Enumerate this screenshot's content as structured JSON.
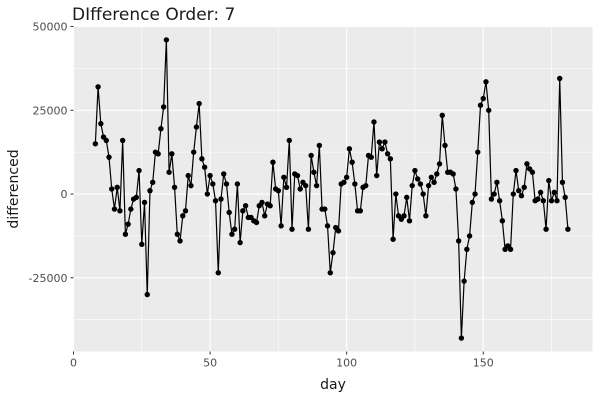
{
  "chart_data": {
    "type": "line",
    "title": "DIfference Order: 7",
    "xlabel": "day",
    "ylabel": "differenced",
    "xlim": [
      0,
      190
    ],
    "ylim": [
      -47000,
      50000
    ],
    "x_ticks": [
      0,
      50,
      100,
      150
    ],
    "y_ticks": [
      -25000,
      0,
      25000,
      50000
    ],
    "y_tick_labels": [
      "-25000",
      "0",
      "25000",
      "50000"
    ],
    "grid": true,
    "legend": "none",
    "colors": {
      "panel": "#ebebeb",
      "grid": "#ffffff",
      "line": "#000000",
      "point": "#000000"
    },
    "series": [
      {
        "x": [
          8,
          9,
          10,
          11,
          12,
          13,
          14,
          15,
          16,
          17,
          18,
          19,
          20,
          21,
          22,
          23,
          24,
          25,
          26,
          27,
          28,
          29,
          30,
          31,
          32,
          33,
          34,
          35,
          36,
          37,
          38,
          39,
          40,
          41,
          42,
          43,
          44,
          45,
          46,
          47,
          48,
          49,
          50,
          51,
          52,
          53,
          54,
          55,
          56,
          57,
          58,
          59,
          60,
          61,
          62,
          63,
          64,
          65,
          66,
          67,
          68,
          69,
          70,
          71,
          72,
          73,
          74,
          75,
          76,
          77,
          78,
          79,
          80,
          81,
          82,
          83,
          84,
          85,
          86,
          87,
          88,
          89,
          90,
          91,
          92,
          93,
          94,
          95,
          96,
          97,
          98,
          99,
          100,
          101,
          102,
          103,
          104,
          105,
          106,
          107,
          108,
          109,
          110,
          111,
          112,
          113,
          114,
          115,
          116,
          117,
          118,
          119,
          120,
          121,
          122,
          123,
          124,
          125,
          126,
          127,
          128,
          129,
          130,
          131,
          132,
          133,
          134,
          135,
          136,
          137,
          138,
          139,
          140,
          141,
          142,
          143,
          144,
          145,
          146,
          147,
          148,
          149,
          150,
          151,
          152,
          153,
          154,
          155,
          156,
          157,
          158,
          159,
          160,
          161,
          162,
          163,
          164,
          165,
          166,
          167,
          168,
          169,
          170,
          171,
          172,
          173,
          174,
          175,
          176,
          177,
          178,
          179,
          180,
          181
        ],
        "y": [
          15000,
          32000,
          21000,
          17000,
          16000,
          11000,
          1500,
          -4500,
          2000,
          -5000,
          16000,
          -12000,
          -9000,
          -4500,
          -1500,
          -1000,
          7000,
          -15000,
          -2500,
          -30000,
          1000,
          3500,
          12500,
          12000,
          19500,
          26000,
          46000,
          6500,
          12000,
          2000,
          -12000,
          -14000,
          -6500,
          -5000,
          5500,
          2500,
          12500,
          20000,
          27000,
          10500,
          8000,
          0,
          5500,
          3000,
          -2000,
          -23500,
          -1500,
          6000,
          3000,
          -5500,
          -12000,
          -10500,
          3000,
          -14500,
          -5000,
          -3500,
          -7000,
          -7000,
          -8000,
          -8500,
          -3500,
          -2500,
          -6500,
          -3000,
          -3500,
          9500,
          1500,
          1000,
          -9500,
          5000,
          2000,
          16000,
          -10500,
          6000,
          5500,
          1500,
          3500,
          2500,
          -10500,
          11500,
          6500,
          2500,
          14500,
          -4500,
          -4500,
          -9500,
          -23500,
          -17500,
          -10000,
          -11000,
          3000,
          3500,
          5000,
          13500,
          9500,
          3000,
          -5000,
          -5000,
          2000,
          2500,
          11500,
          11000,
          21500,
          5500,
          15500,
          13500,
          15500,
          12000,
          10500,
          -13500,
          0,
          -6500,
          -7500,
          -6500,
          -1000,
          -8000,
          2500,
          7000,
          4500,
          3000,
          0,
          -6500,
          2500,
          5000,
          3500,
          6000,
          9000,
          23500,
          14500,
          6500,
          6500,
          6000,
          1500,
          -14000,
          -43000,
          -26000,
          -16500,
          -12500,
          -2500,
          0,
          12500,
          26500,
          28500,
          33500,
          25000,
          -1500,
          0,
          3500,
          -2000,
          -8000,
          -16500,
          -15500,
          -16500,
          0,
          7000,
          1000,
          -500,
          2000,
          9000,
          7500,
          6500,
          -2000,
          -1500,
          500,
          -2000,
          -10500,
          4000,
          -2000,
          500,
          -2000,
          34500,
          3500,
          -1000,
          -10500
        ]
      }
    ]
  }
}
